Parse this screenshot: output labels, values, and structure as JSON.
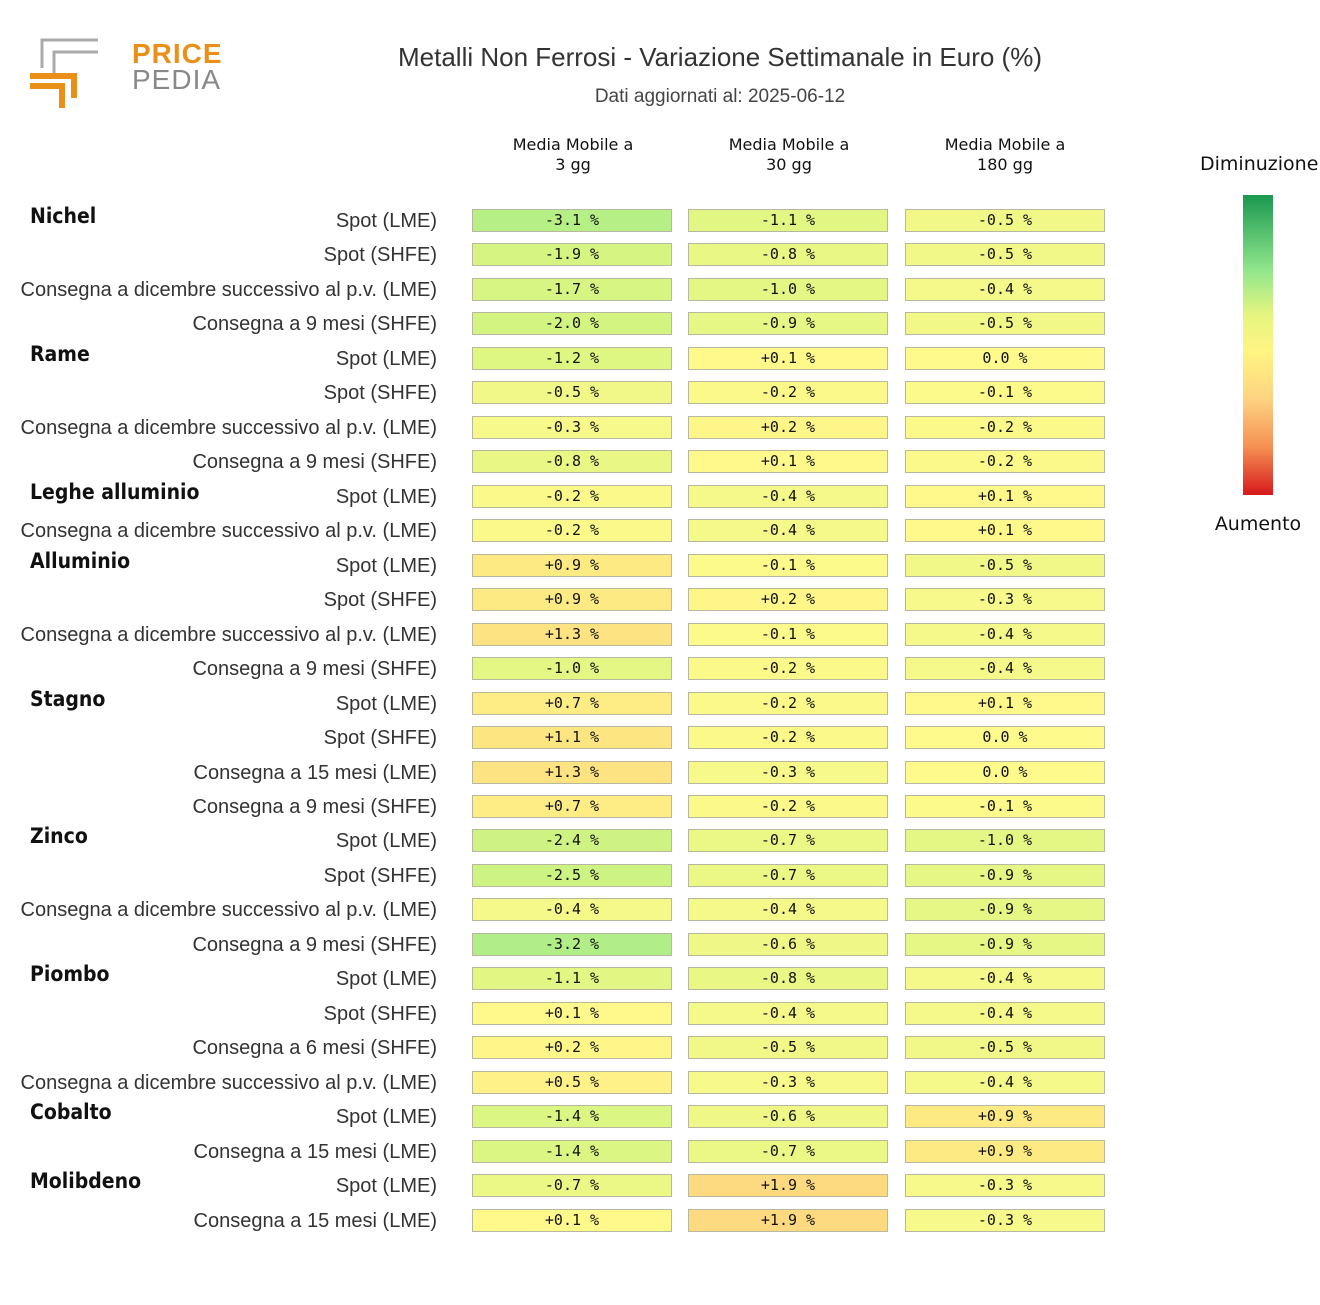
{
  "logo": {
    "line1": "PRICE",
    "line2": "PEDIA",
    "brand_orange": "#e8901a",
    "brand_gray": "#888888"
  },
  "title": "Metalli Non Ferrosi - Variazione Settimanale in Euro (%)",
  "subtitle": "Dati aggiornati al: 2025-06-12",
  "legend": {
    "top_label": "Diminuzione",
    "bottom_label": "Aumento",
    "colors": [
      "#1a9850",
      "#91e68c",
      "#e6f580",
      "#fff582",
      "#fdd380",
      "#f59053",
      "#d7191c"
    ]
  },
  "chart_data": {
    "type": "heatmap",
    "columns": [
      "Media Mobile a\n3 gg",
      "Media Mobile a\n30 gg",
      "Media Mobile a\n180 gg"
    ],
    "groups": [
      {
        "name": "Nichel",
        "rows": [
          {
            "label": "Spot (LME)",
            "values": [
              -3.1,
              -1.1,
              -0.5
            ]
          },
          {
            "label": "Spot (SHFE)",
            "values": [
              -1.9,
              -0.8,
              -0.5
            ]
          },
          {
            "label": "Consegna a dicembre successivo al p.v. (LME)",
            "values": [
              -1.7,
              -1.0,
              -0.4
            ]
          },
          {
            "label": "Consegna a 9 mesi (SHFE)",
            "values": [
              -2.0,
              -0.9,
              -0.5
            ]
          }
        ]
      },
      {
        "name": "Rame",
        "rows": [
          {
            "label": "Spot (LME)",
            "values": [
              -1.2,
              0.1,
              0.0
            ]
          },
          {
            "label": "Spot (SHFE)",
            "values": [
              -0.5,
              -0.2,
              -0.1
            ]
          },
          {
            "label": "Consegna a dicembre successivo al p.v. (LME)",
            "values": [
              -0.3,
              0.2,
              -0.2
            ]
          },
          {
            "label": "Consegna a 9 mesi (SHFE)",
            "values": [
              -0.8,
              0.1,
              -0.2
            ]
          }
        ]
      },
      {
        "name": "Leghe alluminio",
        "rows": [
          {
            "label": "Spot (LME)",
            "values": [
              -0.2,
              -0.4,
              0.1
            ]
          },
          {
            "label": "Consegna a dicembre successivo al p.v. (LME)",
            "values": [
              -0.2,
              -0.4,
              0.1
            ]
          }
        ]
      },
      {
        "name": "Alluminio",
        "rows": [
          {
            "label": "Spot (LME)",
            "values": [
              0.9,
              -0.1,
              -0.5
            ]
          },
          {
            "label": "Spot (SHFE)",
            "values": [
              0.9,
              0.2,
              -0.3
            ]
          },
          {
            "label": "Consegna a dicembre successivo al p.v. (LME)",
            "values": [
              1.3,
              -0.1,
              -0.4
            ]
          },
          {
            "label": "Consegna a 9 mesi (SHFE)",
            "values": [
              -1.0,
              -0.2,
              -0.4
            ]
          }
        ]
      },
      {
        "name": "Stagno",
        "rows": [
          {
            "label": "Spot (LME)",
            "values": [
              0.7,
              -0.2,
              0.1
            ]
          },
          {
            "label": "Spot (SHFE)",
            "values": [
              1.1,
              -0.2,
              0.0
            ]
          },
          {
            "label": "Consegna a 15 mesi (LME)",
            "values": [
              1.3,
              -0.3,
              0.0
            ]
          },
          {
            "label": "Consegna a 9 mesi (SHFE)",
            "values": [
              0.7,
              -0.2,
              -0.1
            ]
          }
        ]
      },
      {
        "name": "Zinco",
        "rows": [
          {
            "label": "Spot (LME)",
            "values": [
              -2.4,
              -0.7,
              -1.0
            ]
          },
          {
            "label": "Spot (SHFE)",
            "values": [
              -2.5,
              -0.7,
              -0.9
            ]
          },
          {
            "label": "Consegna a dicembre successivo al p.v. (LME)",
            "values": [
              -0.4,
              -0.4,
              -0.9
            ]
          },
          {
            "label": "Consegna a 9 mesi (SHFE)",
            "values": [
              -3.2,
              -0.6,
              -0.9
            ]
          }
        ]
      },
      {
        "name": "Piombo",
        "rows": [
          {
            "label": "Spot (LME)",
            "values": [
              -1.1,
              -0.8,
              -0.4
            ]
          },
          {
            "label": "Spot (SHFE)",
            "values": [
              0.1,
              -0.4,
              -0.4
            ]
          },
          {
            "label": "Consegna a 6 mesi (SHFE)",
            "values": [
              0.2,
              -0.5,
              -0.5
            ]
          },
          {
            "label": "Consegna a dicembre successivo al p.v. (LME)",
            "values": [
              0.5,
              -0.3,
              -0.4
            ]
          }
        ]
      },
      {
        "name": "Cobalto",
        "rows": [
          {
            "label": "Spot (LME)",
            "values": [
              -1.4,
              -0.6,
              0.9
            ]
          },
          {
            "label": "Consegna a 15 mesi (LME)",
            "values": [
              -1.4,
              -0.7,
              0.9
            ]
          }
        ]
      },
      {
        "name": "Molibdeno",
        "rows": [
          {
            "label": "Spot (LME)",
            "values": [
              -0.7,
              1.9,
              -0.3
            ]
          },
          {
            "label": "Consegna a 15 mesi (LME)",
            "values": [
              0.1,
              1.9,
              -0.3
            ]
          }
        ]
      }
    ]
  }
}
